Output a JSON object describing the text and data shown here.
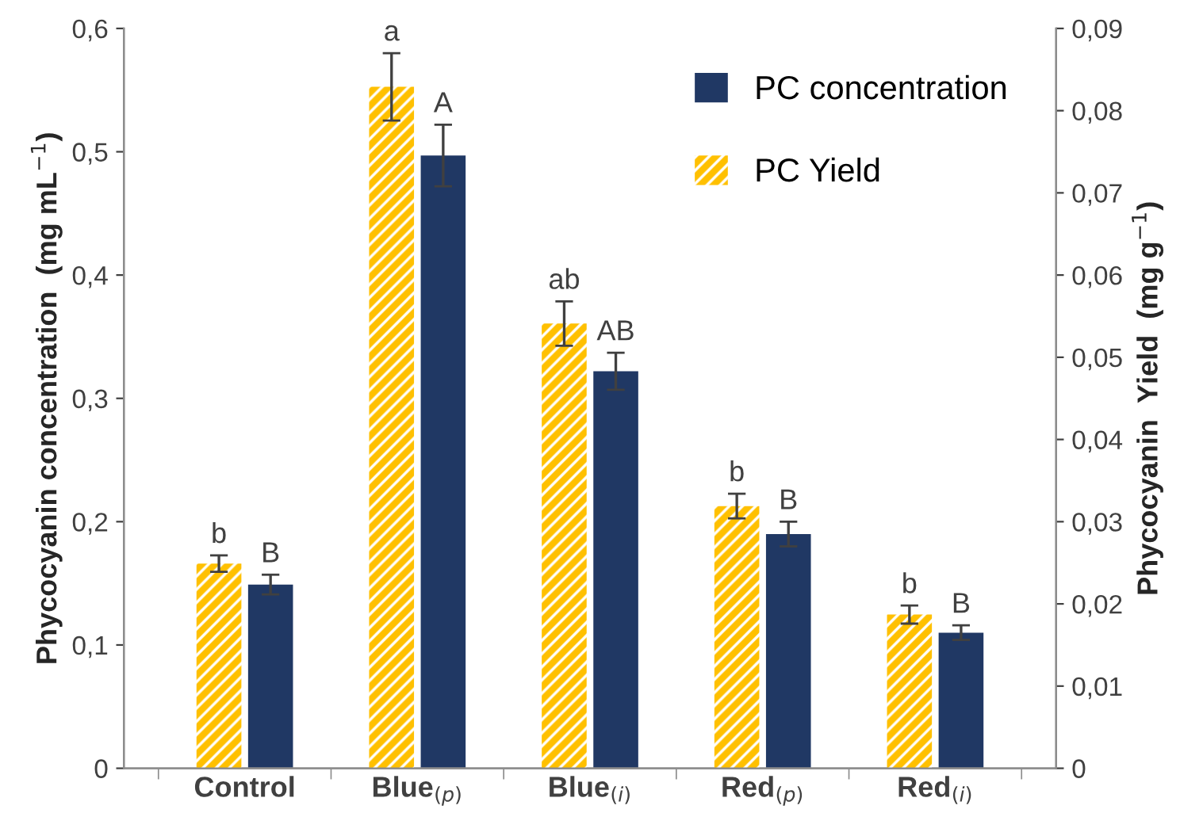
{
  "chart_data": {
    "type": "bar",
    "ylabel": "Phycocyanin concentration  (mg mL$^{−1}$)",
    "y2label": "Phycocyanin  Yield  (mg g$^{−1}$)",
    "categories": [
      "Control",
      "Blue$_{(p)}$",
      "Blue$_{(i)}$",
      "Red$_{(p)}$",
      "Red$_{(i)}$"
    ],
    "series": [
      {
        "name": "PC concentration",
        "color": "#203864",
        "values": [
          0.149,
          0.497,
          0.322,
          0.19,
          0.11
        ],
        "errors": [
          0.008,
          0.025,
          0.015,
          0.01,
          0.006
        ],
        "value_labels": [
          "B",
          "A",
          "AB",
          "B",
          "B"
        ]
      },
      {
        "name": "PC Yield",
        "color": "#ffc000",
        "axis": "y2",
        "values": [
          0.0249,
          0.0829,
          0.0541,
          0.0319,
          0.0187
        ],
        "errors": [
          0.001,
          0.0041,
          0.0027,
          0.0015,
          0.0011
        ],
        "value_labels": [
          "b",
          "a",
          "ab",
          "b",
          "b"
        ]
      }
    ],
    "ylim": [
      0,
      0.6
    ],
    "yticks": [
      0,
      {
        "value": 0.1,
        "label": "0,1"
      },
      {
        "value": 0.2,
        "label": "0,2"
      },
      {
        "value": 0.3,
        "label": "0,3"
      },
      {
        "value": 0.4,
        "label": "0,4"
      },
      {
        "value": 0.5,
        "label": "0,5"
      },
      {
        "value": 0.6,
        "label": "0,6"
      }
    ],
    "y2lim": [
      0,
      0.09
    ],
    "y2ticks": [
      0,
      {
        "value": 0.01,
        "label": "0,01"
      },
      {
        "value": 0.02,
        "label": "0,02"
      },
      {
        "value": 0.03,
        "label": "0,03"
      },
      {
        "value": 0.04,
        "label": "0,04"
      },
      {
        "value": 0.05,
        "label": "0,05"
      },
      {
        "value": 0.06,
        "label": "0,06"
      },
      {
        "value": 0.07,
        "label": "0,07"
      },
      {
        "value": 0.08,
        "label": "0,08"
      },
      {
        "value": 0.09,
        "label": "0,09"
      }
    ],
    "grid": false,
    "legend": "top right"
  }
}
